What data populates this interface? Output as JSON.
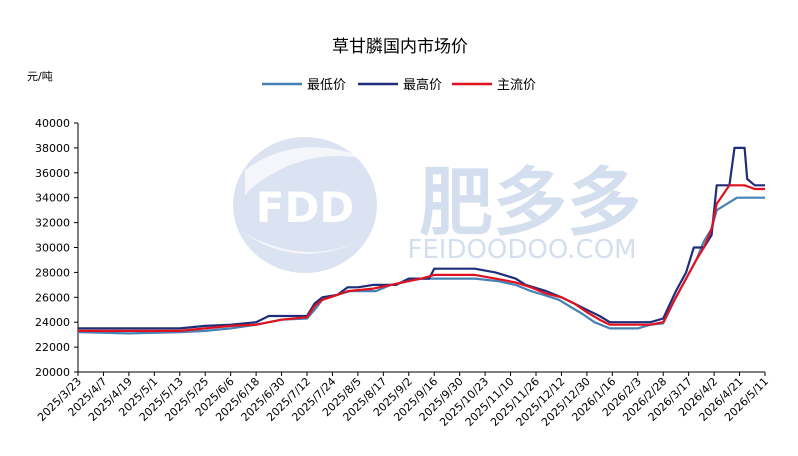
{
  "chart_data": {
    "type": "line",
    "title": "草甘膦国内市场价",
    "unit_label": "元/吨",
    "ylim": [
      20000,
      40000
    ],
    "y_ticks": [
      20000,
      22000,
      24000,
      26000,
      28000,
      30000,
      32000,
      34000,
      36000,
      38000,
      40000
    ],
    "x_ticks": [
      "2025/3/23",
      "2025/4/7",
      "2025/4/19",
      "2025/5/1",
      "2025/5/13",
      "2025/5/25",
      "2025/6/6",
      "2025/6/18",
      "2025/6/30",
      "2025/7/12",
      "2025/7/24",
      "2025/8/5",
      "2025/8/17",
      "2025/9/2",
      "2025/9/16",
      "2025/9/30",
      "2025/10/23",
      "2025/11/10",
      "2025/11/26",
      "2025/12/12",
      "2025/12/30",
      "2026/1/16",
      "2026/2/3",
      "2026/2/28",
      "2026/3/17",
      "2026/4/2",
      "2026/4/21",
      "2026/5/11"
    ],
    "grid": false,
    "legend_position": "top",
    "series": [
      {
        "name": "最低价",
        "color": "#4682b4",
        "points": [
          [
            0,
            23200
          ],
          [
            2,
            23100
          ],
          [
            4,
            23200
          ],
          [
            5,
            23300
          ],
          [
            6,
            23500
          ],
          [
            7,
            23800
          ],
          [
            8,
            24200
          ],
          [
            9,
            24300
          ],
          [
            9.3,
            25000
          ],
          [
            9.6,
            25800
          ],
          [
            10.2,
            26200
          ],
          [
            10.7,
            26500
          ],
          [
            11.7,
            26500
          ],
          [
            12.3,
            27000
          ],
          [
            13,
            27300
          ],
          [
            13.5,
            27500
          ],
          [
            15,
            27500
          ],
          [
            15.6,
            27500
          ],
          [
            16.5,
            27300
          ],
          [
            17.2,
            27000
          ],
          [
            17.8,
            26500
          ],
          [
            18.3,
            26200
          ],
          [
            18.9,
            25800
          ],
          [
            19.3,
            25300
          ],
          [
            19.8,
            24700
          ],
          [
            20.3,
            24000
          ],
          [
            20.9,
            23500
          ],
          [
            22,
            23500
          ],
          [
            22.5,
            23800
          ],
          [
            23,
            23900
          ],
          [
            23.5,
            26000
          ],
          [
            23.9,
            27500
          ],
          [
            24.3,
            29000
          ],
          [
            24.6,
            30500
          ],
          [
            24.9,
            31500
          ],
          [
            25.1,
            33000
          ],
          [
            25.5,
            33500
          ],
          [
            25.9,
            34000
          ],
          [
            26.3,
            34000
          ],
          [
            27,
            34000
          ]
        ]
      },
      {
        "name": "最高价",
        "color": "#1f2e7a",
        "points": [
          [
            0,
            23500
          ],
          [
            2,
            23500
          ],
          [
            4,
            23500
          ],
          [
            5,
            23700
          ],
          [
            6,
            23800
          ],
          [
            7,
            24000
          ],
          [
            7.5,
            24500
          ],
          [
            8,
            24500
          ],
          [
            9,
            24500
          ],
          [
            9.3,
            25500
          ],
          [
            9.6,
            26000
          ],
          [
            10.2,
            26200
          ],
          [
            10.6,
            26800
          ],
          [
            11,
            26800
          ],
          [
            11.6,
            27000
          ],
          [
            12.5,
            27000
          ],
          [
            13,
            27500
          ],
          [
            13.8,
            27500
          ],
          [
            14,
            28300
          ],
          [
            15,
            28300
          ],
          [
            15.6,
            28300
          ],
          [
            16.4,
            28000
          ],
          [
            17.2,
            27500
          ],
          [
            17.6,
            27000
          ],
          [
            18.4,
            26500
          ],
          [
            19,
            26000
          ],
          [
            19.5,
            25500
          ],
          [
            20,
            25000
          ],
          [
            20.5,
            24500
          ],
          [
            20.9,
            24000
          ],
          [
            22.5,
            24000
          ],
          [
            23,
            24300
          ],
          [
            23.5,
            26500
          ],
          [
            23.9,
            28000
          ],
          [
            24.2,
            30000
          ],
          [
            24.6,
            30000
          ],
          [
            24.9,
            31000
          ],
          [
            25.1,
            35000
          ],
          [
            25.6,
            35000
          ],
          [
            25.8,
            38000
          ],
          [
            26.2,
            38000
          ],
          [
            26.3,
            35500
          ],
          [
            26.6,
            35000
          ],
          [
            27,
            35000
          ]
        ]
      },
      {
        "name": "主流价",
        "color": "#e0121f",
        "points": [
          [
            0,
            23300
          ],
          [
            2,
            23300
          ],
          [
            4,
            23300
          ],
          [
            5,
            23500
          ],
          [
            6,
            23700
          ],
          [
            7,
            23800
          ],
          [
            8,
            24200
          ],
          [
            9,
            24400
          ],
          [
            9.3,
            25300
          ],
          [
            9.6,
            25800
          ],
          [
            10.2,
            26200
          ],
          [
            10.6,
            26500
          ],
          [
            11.6,
            26700
          ],
          [
            12.3,
            27000
          ],
          [
            13,
            27300
          ],
          [
            13.5,
            27500
          ],
          [
            14,
            27800
          ],
          [
            15.6,
            27800
          ],
          [
            16.4,
            27500
          ],
          [
            17.2,
            27200
          ],
          [
            17.8,
            26800
          ],
          [
            18.4,
            26300
          ],
          [
            19,
            26000
          ],
          [
            19.5,
            25500
          ],
          [
            20,
            24800
          ],
          [
            20.5,
            24200
          ],
          [
            20.9,
            23800
          ],
          [
            22.5,
            23800
          ],
          [
            23,
            24000
          ],
          [
            23.5,
            26000
          ],
          [
            23.9,
            27500
          ],
          [
            24.3,
            29000
          ],
          [
            24.6,
            30000
          ],
          [
            24.9,
            31500
          ],
          [
            25.1,
            33500
          ],
          [
            25.6,
            35000
          ],
          [
            26.2,
            35000
          ],
          [
            26.6,
            34700
          ],
          [
            27,
            34700
          ]
        ]
      }
    ]
  },
  "watermark": {
    "logo_text": "FDD",
    "brand_cn": "肥多多",
    "brand_url": "FEIDOODOO.COM"
  }
}
